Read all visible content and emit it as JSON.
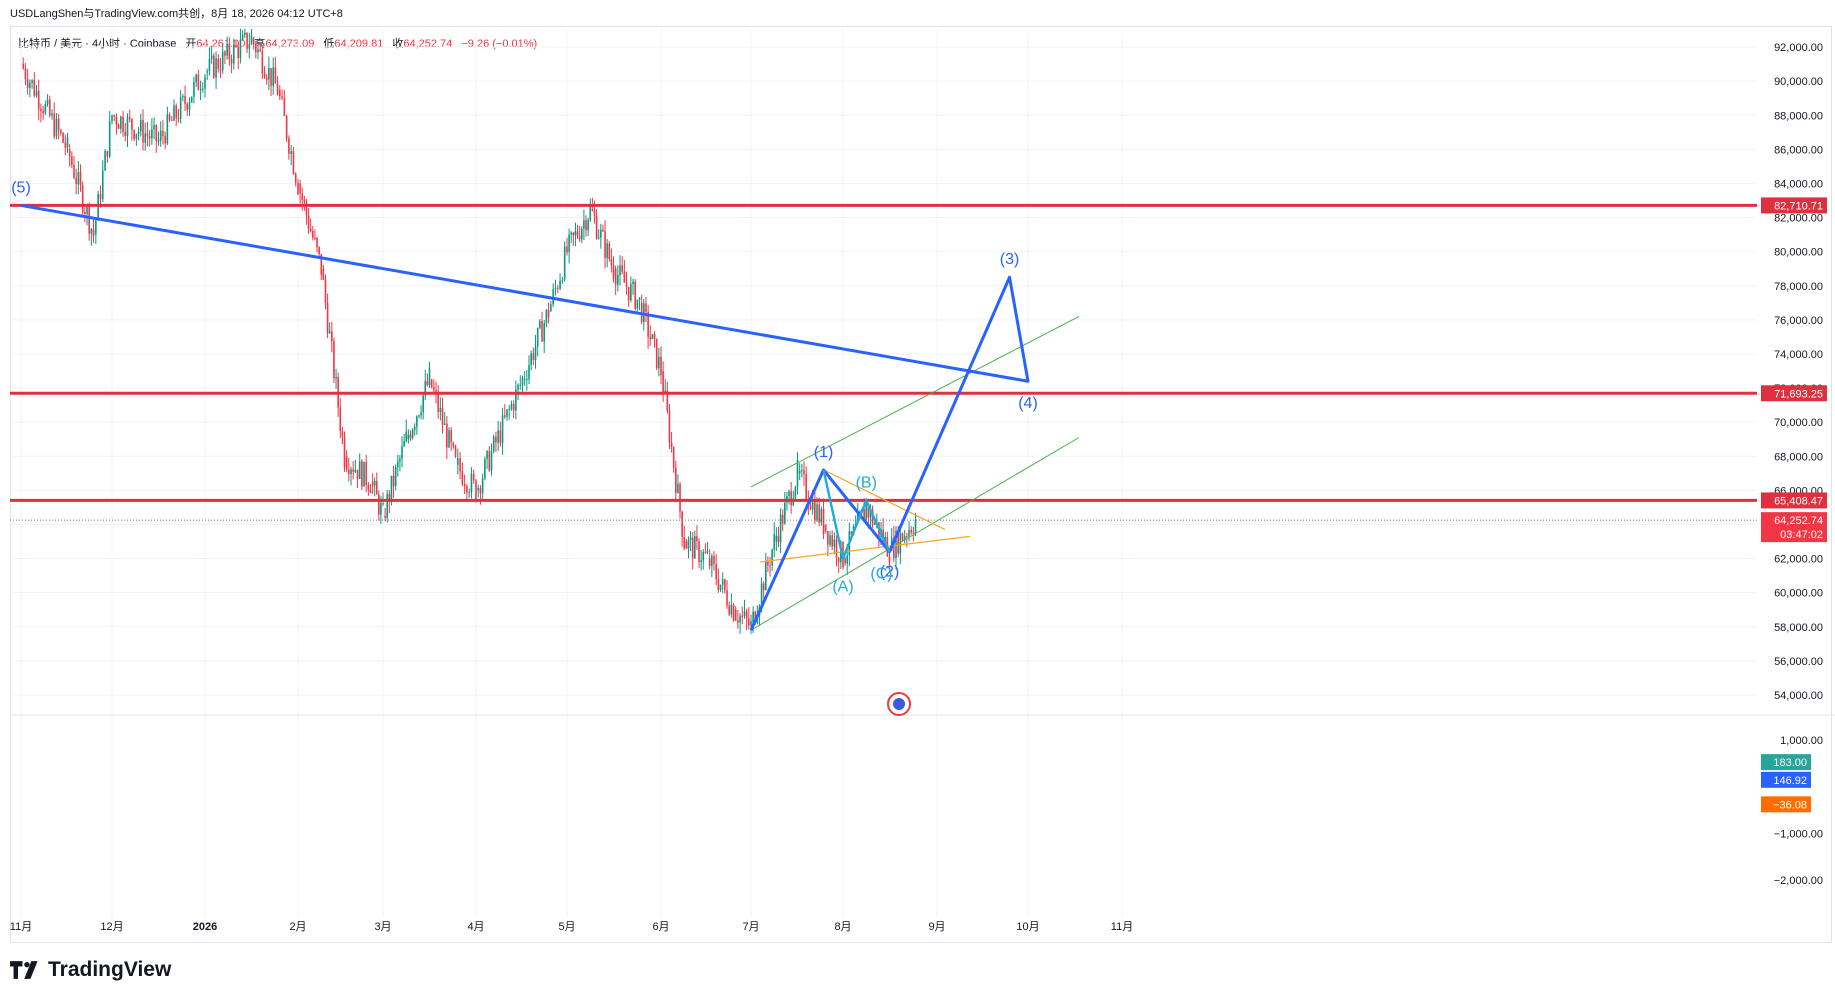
{
  "header": {
    "title": "USDLangShen与TradingView.com共创，8月 18, 2026 04:12 UTC+8"
  },
  "legend": {
    "symbol": "比特币 / 美元 · 4小时 · Coinbase",
    "open_label": "开",
    "open": "64,261.00",
    "high_label": "高",
    "high": "64,273.09",
    "low_label": "低",
    "low": "64,209.81",
    "close_label": "收",
    "close": "64,252.74",
    "change": "−9.26 (−0.01%)"
  },
  "brand": {
    "name": "TradingView"
  },
  "colors": {
    "up": "#089981",
    "down": "#f23645",
    "level": "#e03040",
    "wave": "#2962ff",
    "abc": "#22aadd",
    "triangle": "#f5a623",
    "channel": "#4caf50"
  },
  "chart_data": {
    "type": "candlestick",
    "price_axis": {
      "ticks": [
        "92,000.00",
        "90,000.00",
        "88,000.00",
        "86,000.00",
        "84,000.00",
        "82,000.00",
        "80,000.00",
        "78,000.00",
        "76,000.00",
        "74,000.00",
        "72,000.00",
        "70,000.00",
        "68,000.00",
        "66,000.00",
        "64,000.00",
        "62,000.00",
        "60,000.00",
        "58,000.00",
        "56,000.00",
        "54,000.00"
      ],
      "range": [
        53000,
        93000
      ]
    },
    "time_axis": {
      "ticks": [
        "11月",
        "12月",
        "2026",
        "2月",
        "3月",
        "4月",
        "5月",
        "6月",
        "7月",
        "8月",
        "9月",
        "10月",
        "11月"
      ]
    },
    "price_path": [
      [
        "11月",
        91000
      ],
      [
        "11月 中",
        86000
      ],
      [
        "11月 下",
        81000
      ],
      [
        "12月",
        88000
      ],
      [
        "12月 中",
        86500
      ],
      [
        "2026",
        90500
      ],
      [
        "1月 中",
        92500
      ],
      [
        "2026 下",
        89500
      ],
      [
        "2月",
        84000
      ],
      [
        "2月 上",
        79000
      ],
      [
        "2月 中",
        68000
      ],
      [
        "2月 下",
        66500
      ],
      [
        "3月",
        64500
      ],
      [
        "3月 上",
        69000
      ],
      [
        "3月 中",
        72500
      ],
      [
        "3月 下",
        67500
      ],
      [
        "4月",
        66000
      ],
      [
        "4月 中",
        72500
      ],
      [
        "4月 下",
        76500
      ],
      [
        "5月",
        80000
      ],
      [
        "5月 上",
        82500
      ],
      [
        "5月 中",
        79000
      ],
      [
        "5月 下",
        77000
      ],
      [
        "6月",
        73000
      ],
      [
        "6月 上",
        63000
      ],
      [
        "6月 中",
        62000
      ],
      [
        "6月 下",
        59000
      ],
      [
        "7月",
        58000
      ],
      [
        "7月 上",
        63000
      ],
      [
        "7月 中",
        67000
      ],
      [
        "7月 下",
        64000
      ],
      [
        "8月",
        62000
      ],
      [
        "8月 上",
        65000
      ],
      [
        "8月 中",
        62500
      ],
      [
        "8月 下",
        64252.74
      ]
    ],
    "levels": [
      {
        "label": "82,710.71",
        "value": 82710.71
      },
      {
        "label": "71,693.25",
        "value": 71693.25
      },
      {
        "label": "65,408.47",
        "value": 65408.47
      }
    ],
    "current_price": {
      "label": "64,252.74",
      "countdown": "03:47:02",
      "value": 64252.74
    },
    "wave_labels": [
      "(1)",
      "(2)",
      "(3)",
      "(4)",
      "(5)"
    ],
    "abc_labels": [
      "(A)",
      "(B)",
      "(C)"
    ],
    "wave_points": [
      [
        "7月",
        57800
      ],
      [
        "7月 下",
        67200
      ],
      [
        "8月 中",
        62400
      ],
      [
        "9月 下",
        78500
      ],
      [
        "10月",
        72400
      ],
      [
        "11月",
        82710.71
      ]
    ],
    "abc_points": [
      [
        "7月 下",
        67200
      ],
      [
        "8月",
        62000
      ],
      [
        "8月 上",
        65400
      ],
      [
        "8月 中",
        62400
      ]
    ],
    "indicator_axis": {
      "ticks": [
        "1,000.00",
        "−1,000.00",
        "−2,000.00"
      ],
      "range": [
        -2600,
        1300
      ]
    },
    "indicator_values": [
      {
        "label": "183.00",
        "value": 183.0,
        "color": "#26a69a"
      },
      {
        "label": "146.92",
        "value": 146.92,
        "color": "#2962ff"
      },
      {
        "label": "−36.08",
        "value": -36.08,
        "color": "#ff6d00"
      }
    ]
  }
}
